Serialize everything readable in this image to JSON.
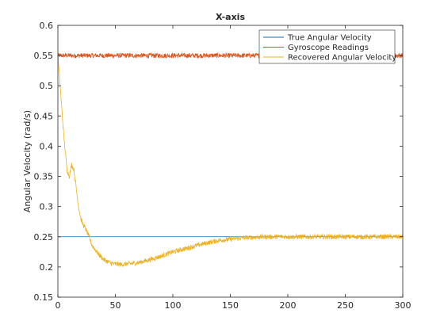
{
  "chart_data": {
    "type": "line",
    "title": "X-axis",
    "xlabel": "",
    "ylabel": "Angular Velocity (rad/s)",
    "xlim": [
      0,
      300
    ],
    "ylim": [
      0.15,
      0.6
    ],
    "xticks": [
      0,
      50,
      100,
      150,
      200,
      250,
      300
    ],
    "yticks": [
      0.15,
      0.2,
      0.25,
      0.3,
      0.35,
      0.4,
      0.45,
      0.5,
      0.55,
      0.6
    ],
    "xtick_labels": [
      "0",
      "50",
      "100",
      "150",
      "200",
      "250",
      "300"
    ],
    "ytick_labels": [
      "0.15",
      "0.2",
      "0.25",
      "0.3",
      "0.35",
      "0.4",
      "0.45",
      "0.5",
      "0.55",
      "0.6"
    ],
    "grid": false,
    "legend_position": "top-right",
    "series": [
      {
        "name": "True Angular Velocity",
        "color": "#0072bd",
        "x": [
          0,
          300
        ],
        "y": [
          0.25,
          0.25
        ]
      },
      {
        "name": "Gyroscope Readings",
        "color": "#d95319",
        "x": [
          0,
          300
        ],
        "y": [
          0.55,
          0.55
        ],
        "noise": 0.004
      },
      {
        "name": "Recovered Angular Velocity",
        "color": "#edb120",
        "x": [
          0,
          2,
          5,
          8,
          10,
          12,
          14,
          16,
          18,
          20,
          22,
          25,
          30,
          35,
          40,
          45,
          50,
          55,
          60,
          70,
          80,
          90,
          100,
          110,
          120,
          130,
          140,
          150,
          160,
          170,
          180,
          190,
          200,
          220,
          240,
          260,
          280,
          300
        ],
        "y": [
          0.55,
          0.5,
          0.42,
          0.36,
          0.35,
          0.37,
          0.36,
          0.33,
          0.3,
          0.28,
          0.27,
          0.26,
          0.235,
          0.222,
          0.212,
          0.207,
          0.205,
          0.204,
          0.205,
          0.207,
          0.212,
          0.218,
          0.225,
          0.23,
          0.235,
          0.24,
          0.244,
          0.246,
          0.248,
          0.249,
          0.25,
          0.25,
          0.25,
          0.25,
          0.25,
          0.25,
          0.25,
          0.25
        ],
        "noise": 0.004
      }
    ]
  }
}
